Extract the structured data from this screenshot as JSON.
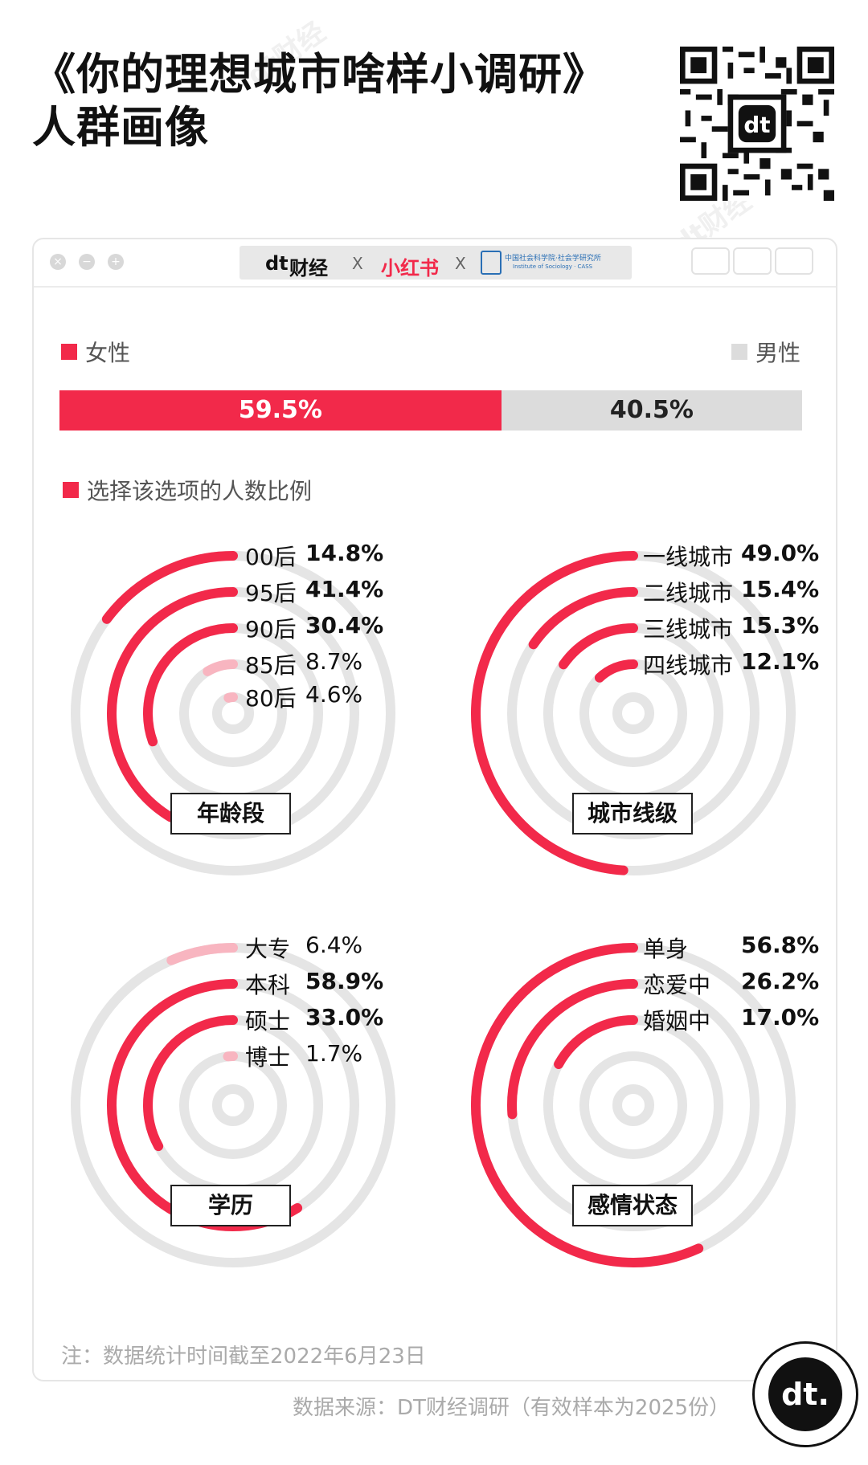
{
  "header": {
    "title_line1": "《你的理想城市啥样小调研》",
    "title_line2": "人群画像"
  },
  "watermark": "dt财经",
  "logo_bar": {
    "dt_logo": "dt",
    "dt_text": "财经",
    "sep": "X",
    "xhs": "小红书",
    "cass_line1": "中国社会科学院·社会学研究所",
    "cass_line2": "Institute of Sociology · CASS"
  },
  "colors": {
    "accent": "#f2294a",
    "light": "#f8b5c0",
    "track": "#e5e5e5",
    "male": "#dcdcdc"
  },
  "gender": {
    "female_label": "女性",
    "male_label": "男性",
    "female_value": "59.5%",
    "male_value": "40.5%"
  },
  "share_legend": "选择该选项的人数比例",
  "chart_data": [
    {
      "type": "radial-bar",
      "title": "年龄段",
      "categories": [
        "00后",
        "95后",
        "90后",
        "85后",
        "80后"
      ],
      "labels": [
        "14.8%",
        "41.4%",
        "30.4%",
        "8.7%",
        "4.6%"
      ],
      "values": [
        14.8,
        41.4,
        30.4,
        8.7,
        4.6
      ]
    },
    {
      "type": "radial-bar",
      "title": "城市线级",
      "categories": [
        "一线城市",
        "二线城市",
        "三线城市",
        "四线城市"
      ],
      "labels": [
        "49.0%",
        "15.4%",
        "15.3%",
        "12.1%"
      ],
      "values": [
        49.0,
        15.4,
        15.3,
        12.1
      ]
    },
    {
      "type": "radial-bar",
      "title": "学历",
      "categories": [
        "大专",
        "本科",
        "硕士",
        "博士"
      ],
      "labels": [
        "6.4%",
        "58.9%",
        "33.0%",
        "1.7%"
      ],
      "values": [
        6.4,
        58.9,
        33.0,
        1.7
      ]
    },
    {
      "type": "radial-bar",
      "title": "感情状态",
      "categories": [
        "单身",
        "恋爱中",
        "婚姻中"
      ],
      "labels": [
        "56.8%",
        "26.2%",
        "17.0%"
      ],
      "values": [
        56.8,
        26.2,
        17.0
      ]
    }
  ],
  "footer": {
    "note": "注：数据统计时间截至2022年6月23日",
    "source": "数据来源：DT财经调研（有效样本为2025份）",
    "badge": "dt."
  }
}
